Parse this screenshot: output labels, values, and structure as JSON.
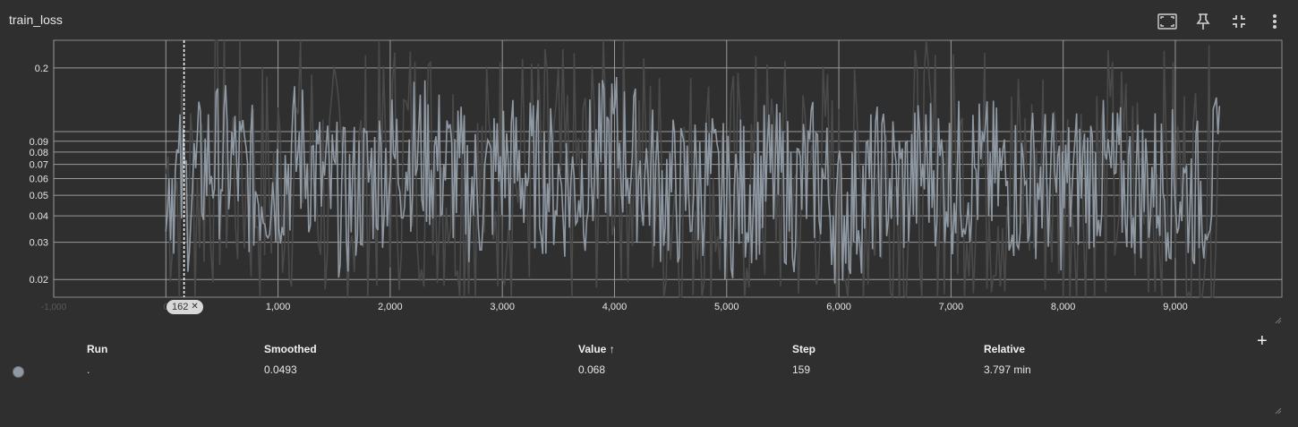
{
  "card": {
    "title": "train_loss",
    "toolbar": [
      {
        "name": "fullscreen-icon"
      },
      {
        "name": "pin-icon"
      },
      {
        "name": "collapse-icon"
      },
      {
        "name": "more-vert-icon"
      }
    ]
  },
  "chart_data": {
    "type": "line",
    "title": "train_loss",
    "xlabel": "",
    "ylabel": "",
    "y_scale": "log",
    "xlim": [
      -1000,
      9950
    ],
    "ylim": [
      0.0165,
      0.27
    ],
    "x_ticks": [
      {
        "value": 1000,
        "label": "1,000"
      },
      {
        "value": 2000,
        "label": "2,000"
      },
      {
        "value": 3000,
        "label": "3,000"
      },
      {
        "value": 4000,
        "label": "4,000"
      },
      {
        "value": 5000,
        "label": "5,000"
      },
      {
        "value": 6000,
        "label": "6,000"
      },
      {
        "value": 7000,
        "label": "7,000"
      },
      {
        "value": 8000,
        "label": "8,000"
      },
      {
        "value": 9000,
        "label": "9,000"
      }
    ],
    "x_tick_faded": [
      {
        "value": -1000,
        "label": "-1,000"
      },
      {
        "value": 0,
        "label": "0"
      }
    ],
    "y_ticks": [
      {
        "value": 0.2,
        "label": "0.2"
      },
      {
        "value": 0.09,
        "label": "0.09"
      },
      {
        "value": 0.08,
        "label": "0.08"
      },
      {
        "value": 0.07,
        "label": "0.07"
      },
      {
        "value": 0.06,
        "label": "0.06"
      },
      {
        "value": 0.05,
        "label": "0.05"
      },
      {
        "value": 0.04,
        "label": "0.04"
      },
      {
        "value": 0.03,
        "label": "0.03"
      },
      {
        "value": 0.02,
        "label": "0.02"
      }
    ],
    "extra_gridlines": [
      0.1
    ],
    "grid": true,
    "cursor_step": 162,
    "cursor_label": "162",
    "series": [
      {
        "color": "#8f99a3",
        "raw_color": "#4a4a4a",
        "x": [
          0,
          200,
          400,
          600,
          800,
          1000,
          1200,
          1400,
          1600,
          1800,
          2000,
          2200,
          2400,
          2600,
          2800,
          3000,
          3200,
          3400,
          3600,
          3800,
          4000,
          4200,
          4400,
          4600,
          4800,
          5000,
          5200,
          5400,
          5600,
          5800,
          6000,
          6200,
          6400,
          6600,
          6800,
          7000,
          7200,
          7400,
          7600,
          7800,
          8000,
          8200,
          8400,
          8600,
          8800,
          9000,
          9200,
          9400
        ],
        "values": [
          0.065,
          0.05,
          0.075,
          0.07,
          0.055,
          0.06,
          0.08,
          0.055,
          0.045,
          0.06,
          0.07,
          0.08,
          0.075,
          0.06,
          0.05,
          0.07,
          0.065,
          0.06,
          0.055,
          0.065,
          0.09,
          0.07,
          0.055,
          0.05,
          0.06,
          0.045,
          0.055,
          0.06,
          0.05,
          0.065,
          0.04,
          0.05,
          0.06,
          0.055,
          0.07,
          0.06,
          0.065,
          0.06,
          0.055,
          0.06,
          0.05,
          0.065,
          0.06,
          0.055,
          0.06,
          0.055,
          0.05,
          0.065
        ]
      }
    ]
  },
  "table": {
    "headers": {
      "run": "Run",
      "smoothed": "Smoothed",
      "value": "Value ↑",
      "step": "Step",
      "relative": "Relative"
    },
    "rows": [
      {
        "color": "#8f99a3",
        "run": ".",
        "smoothed": "0.0493",
        "value": "0.068",
        "step": "159",
        "relative": "3.797 min"
      }
    ]
  }
}
